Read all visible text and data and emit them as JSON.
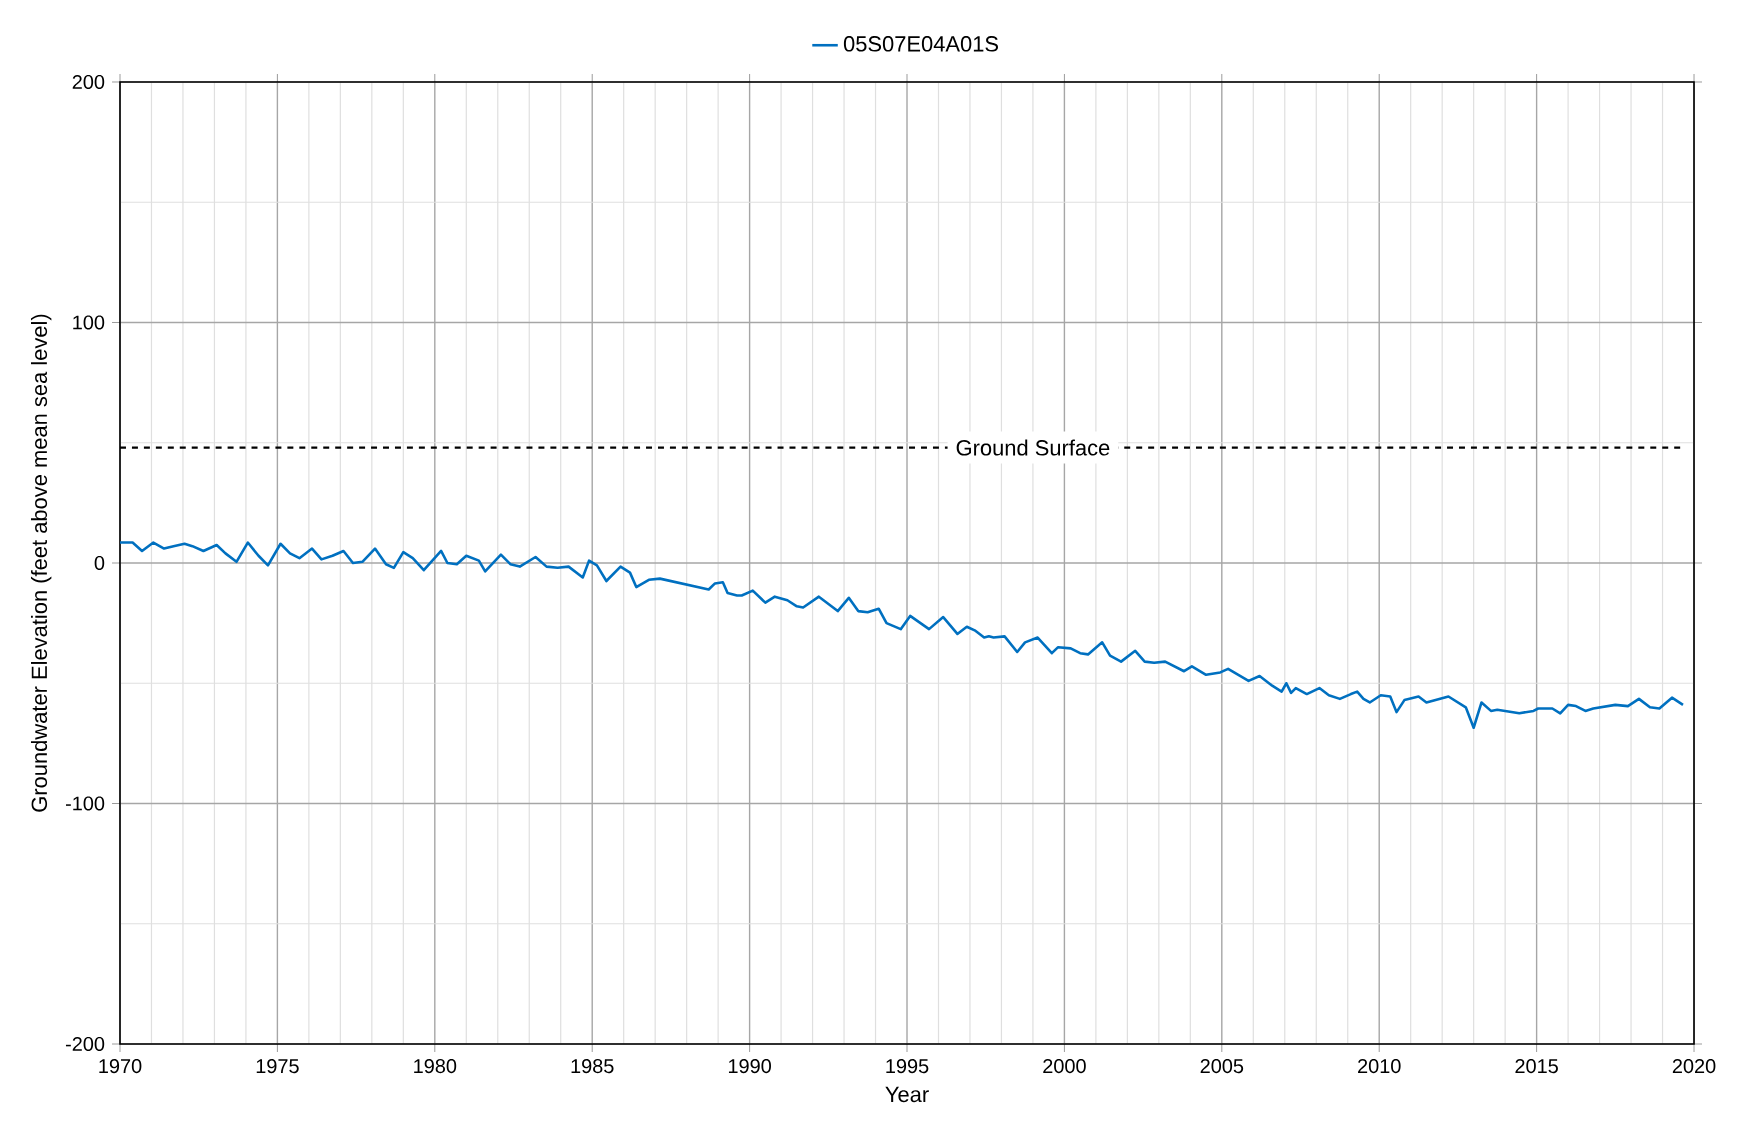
{
  "chart_data": {
    "type": "line",
    "xlabel": "Year",
    "ylabel": "Groundwater Elevation (feet above mean sea level)",
    "xlim": [
      1970,
      2020
    ],
    "ylim": [
      -200,
      200
    ],
    "xticks": [
      1970,
      1975,
      1980,
      1985,
      1990,
      1995,
      2000,
      2005,
      2010,
      2015,
      2020
    ],
    "yticks": [
      -200,
      -100,
      0,
      100,
      200
    ],
    "grid": true,
    "legend": "top",
    "marker": "none",
    "line_style": "solid",
    "ref_lines": [
      {
        "axis": "y",
        "value": 48,
        "label": "Ground Surface",
        "color": "#000000",
        "line_style": "dashed"
      }
    ],
    "series": [
      {
        "name": "05S07E04A01S",
        "color": "#0070c0",
        "x": [
          1970.0,
          1970.4,
          1970.7,
          1971.06,
          1971.4,
          1971.7,
          1972.05,
          1972.3,
          1972.65,
          1973.07,
          1973.35,
          1973.7,
          1974.06,
          1974.4,
          1974.7,
          1975.1,
          1975.4,
          1975.7,
          1976.1,
          1976.4,
          1976.75,
          1977.1,
          1977.4,
          1977.7,
          1978.1,
          1978.45,
          1978.7,
          1979.0,
          1979.3,
          1979.65,
          1980.2,
          1980.4,
          1980.7,
          1981.0,
          1981.4,
          1981.6,
          1982.1,
          1982.4,
          1982.7,
          1983.2,
          1983.55,
          1983.9,
          1984.25,
          1984.7,
          1984.9,
          1985.15,
          1985.45,
          1985.9,
          1986.2,
          1986.4,
          1986.8,
          1987.15,
          1988.7,
          1988.9,
          1989.15,
          1989.3,
          1989.6,
          1989.75,
          1990.1,
          1990.5,
          1990.8,
          1991.2,
          1991.5,
          1991.7,
          1992.2,
          1992.8,
          1993.15,
          1993.45,
          1993.75,
          1994.1,
          1994.35,
          1994.8,
          1995.1,
          1995.7,
          1996.15,
          1996.6,
          1996.9,
          1997.15,
          1997.45,
          1997.6,
          1997.75,
          1998.1,
          1998.5,
          1998.75,
          1999.15,
          1999.6,
          1999.8,
          2000.2,
          2000.5,
          2000.75,
          2001.2,
          2001.45,
          2001.8,
          2002.25,
          2002.55,
          2002.85,
          2003.2,
          2003.8,
          2004.05,
          2004.5,
          2004.95,
          2005.2,
          2005.85,
          2006.2,
          2006.6,
          2006.9,
          2007.05,
          2007.2,
          2007.35,
          2007.7,
          2008.1,
          2008.4,
          2008.75,
          2009.1,
          2009.3,
          2009.5,
          2009.7,
          2010.05,
          2010.35,
          2010.55,
          2010.8,
          2011.25,
          2011.5,
          2012.2,
          2012.75,
          2013.0,
          2013.25,
          2013.55,
          2013.75,
          2014.45,
          2014.9,
          2015.05,
          2015.5,
          2015.75,
          2016.0,
          2016.25,
          2016.55,
          2016.8,
          2017.5,
          2017.9,
          2018.25,
          2018.6,
          2018.9,
          2019.3,
          2019.65
        ],
        "values": [
          8.5,
          8.5,
          5,
          8.5,
          6,
          7,
          8,
          7,
          5,
          7.5,
          4,
          0.5,
          8.5,
          3,
          -1,
          8,
          4,
          2,
          6,
          1.5,
          3,
          5,
          0,
          0.5,
          6,
          -0.5,
          -2,
          4.5,
          2,
          -3,
          5,
          0,
          -0.5,
          3,
          1,
          -3.5,
          3.5,
          -0.5,
          -1.5,
          2.5,
          -1.5,
          -2,
          -1.5,
          -6,
          1,
          -1,
          -7.5,
          -1.5,
          -4,
          -10,
          -7,
          -6.5,
          -11,
          -8.5,
          -8,
          -12.5,
          -13.5,
          -13.5,
          -11.5,
          -16.5,
          -14,
          -15.5,
          -18,
          -18.5,
          -14,
          -20,
          -14.5,
          -20,
          -20.5,
          -19,
          -25,
          -27.5,
          -22,
          -27.5,
          -22.5,
          -29.5,
          -26.5,
          -28,
          -31,
          -30.5,
          -31,
          -30.5,
          -37,
          -33,
          -31,
          -37.5,
          -35,
          -35.5,
          -37.5,
          -38,
          -33,
          -38.5,
          -41,
          -36.5,
          -41,
          -41.5,
          -41,
          -45,
          -43,
          -46.5,
          -45.5,
          -44,
          -49,
          -47,
          -51,
          -53.5,
          -50,
          -54,
          -52,
          -54.5,
          -52,
          -55,
          -56.5,
          -54.5,
          -53.5,
          -56.5,
          -58,
          -55,
          -55.5,
          -62,
          -57,
          -55.5,
          -58,
          -55.5,
          -60,
          -68.5,
          -58,
          -61.5,
          -61,
          -62.5,
          -61.5,
          -60.5,
          -60.5,
          -62.5,
          -59,
          -59.5,
          -61.5,
          -60.5,
          -59,
          -59.5,
          -56.5,
          -60,
          -60.5,
          -56,
          -59
        ]
      }
    ]
  }
}
